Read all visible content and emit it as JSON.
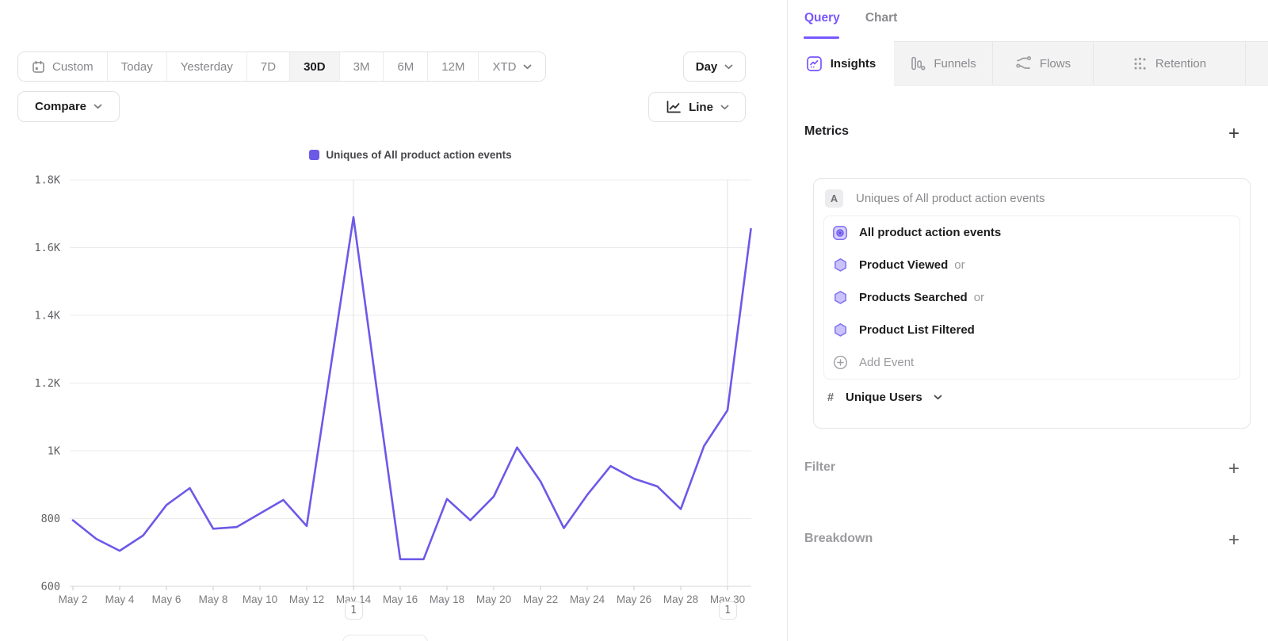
{
  "toolbar": {
    "ranges": [
      "Custom",
      "Today",
      "Yesterday",
      "7D",
      "30D",
      "3M",
      "6M",
      "12M",
      "XTD"
    ],
    "selected_range": "30D",
    "granularity_label": "Day",
    "compare_label": "Compare",
    "chart_type_label": "Line"
  },
  "chart_data": {
    "type": "line",
    "legend": [
      "Uniques of All product action events"
    ],
    "x": [
      "May 2",
      "May 3",
      "May 4",
      "May 5",
      "May 6",
      "May 7",
      "May 8",
      "May 9",
      "May 10",
      "May 11",
      "May 12",
      "May 13",
      "May 14",
      "May 15",
      "May 16",
      "May 17",
      "May 18",
      "May 19",
      "May 20",
      "May 21",
      "May 22",
      "May 23",
      "May 24",
      "May 25",
      "May 26",
      "May 27",
      "May 28",
      "May 29",
      "May 30",
      "May 31"
    ],
    "series": [
      {
        "name": "Uniques of All product action events",
        "color": "#6c59e8",
        "values": [
          795,
          740,
          705,
          750,
          840,
          890,
          770,
          775,
          815,
          855,
          778,
          1235,
          1690,
          1180,
          680,
          680,
          858,
          795,
          865,
          1010,
          910,
          772,
          870,
          955,
          918,
          895,
          828,
          1015,
          1120,
          1655
        ]
      }
    ],
    "x_tick_labels": [
      "May 2",
      "May 4",
      "May 6",
      "May 8",
      "May 10",
      "May 12",
      "May 14",
      "May 16",
      "May 18",
      "May 20",
      "May 22",
      "May 24",
      "May 26",
      "May 28",
      "May 30"
    ],
    "y_ticks": [
      "1.8K",
      "1.6K",
      "1.4K",
      "1.2K",
      "1K",
      "800",
      "600"
    ],
    "ylim": [
      600,
      1800
    ],
    "grid": "horizontal",
    "legend_position": "top-center",
    "annotations": [
      {
        "x": "May 14",
        "label": "1"
      },
      {
        "x": "May 30",
        "label": "1"
      }
    ]
  },
  "side_panel": {
    "view_tabs": [
      {
        "label": "Query",
        "active": true
      },
      {
        "label": "Chart",
        "active": false
      }
    ],
    "report_tabs": [
      {
        "label": "Insights",
        "icon": "insights-icon",
        "active": true
      },
      {
        "label": "Funnels",
        "icon": "funnels-icon",
        "active": false
      },
      {
        "label": "Flows",
        "icon": "flows-icon",
        "active": false
      },
      {
        "label": "Retention",
        "icon": "retention-icon",
        "active": false
      }
    ],
    "metrics": {
      "heading": "Metrics",
      "add_button": "+",
      "group_badge": "A",
      "group_title": "Uniques of All product action events",
      "events": [
        {
          "label": "All product action events",
          "icon": "all-events-icon"
        },
        {
          "label": "Product Viewed",
          "suffix": "or",
          "icon": "hexagon-icon"
        },
        {
          "label": "Products Searched",
          "suffix": "or",
          "icon": "hexagon-icon"
        },
        {
          "label": "Product List Filtered",
          "icon": "hexagon-icon"
        },
        {
          "label": "Add Event",
          "icon": "add-circle-icon",
          "muted": true
        }
      ],
      "measure": {
        "symbol": "#",
        "label": "Unique Users"
      }
    },
    "sections": [
      {
        "label": "Filter",
        "add_button": "+"
      },
      {
        "label": "Breakdown",
        "add_button": "+"
      }
    ]
  },
  "colors": {
    "accent_purple": "#7856ff",
    "line_purple": "#6c59e8",
    "hex_fill": "#cac3f9",
    "hex_stroke": "#8072ef"
  }
}
